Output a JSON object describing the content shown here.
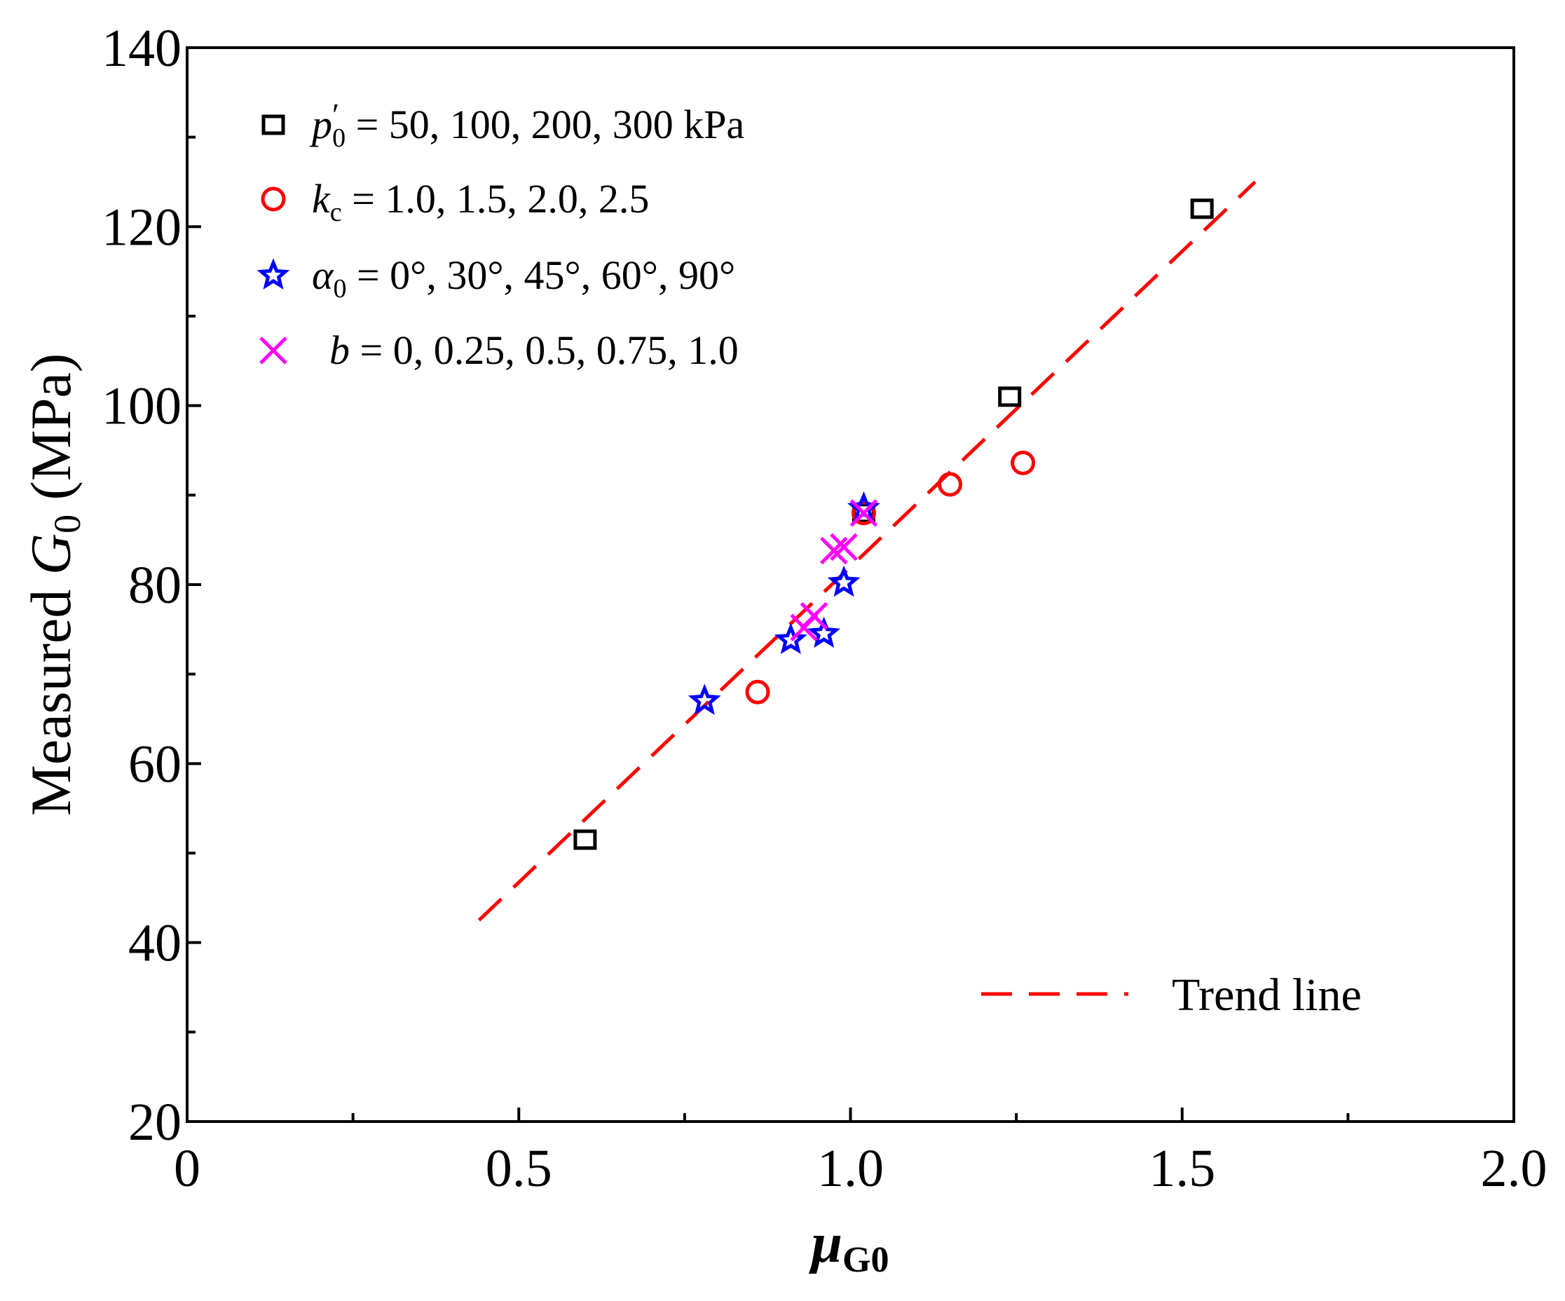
{
  "chart_data": {
    "type": "scatter",
    "title": "",
    "xlabel": "μG0",
    "xlabel_main": "μ",
    "xlabel_sub": "G0",
    "ylabel": "Measured G0 (MPa)",
    "ylabel_parts": {
      "prefix": "Measured ",
      "symbol": "G",
      "sub": "0",
      "suffix": " (MPa)"
    },
    "xlim": [
      0,
      2.0
    ],
    "ylim": [
      20,
      140
    ],
    "x_ticks": [
      {
        "value": 0,
        "label": "0"
      },
      {
        "value": 0.5,
        "label": "0.5"
      },
      {
        "value": 1.0,
        "label": "1.0"
      },
      {
        "value": 1.5,
        "label": "1.5"
      },
      {
        "value": 2.0,
        "label": "2.0"
      }
    ],
    "x_minor_ticks": [
      0.25,
      0.75,
      1.25,
      1.75
    ],
    "y_ticks": [
      {
        "value": 20,
        "label": "20"
      },
      {
        "value": 40,
        "label": "40"
      },
      {
        "value": 60,
        "label": "60"
      },
      {
        "value": 80,
        "label": "80"
      },
      {
        "value": 100,
        "label": "100"
      },
      {
        "value": 120,
        "label": "120"
      },
      {
        "value": 140,
        "label": "140"
      }
    ],
    "y_minor_ticks": [
      30,
      50,
      70,
      90,
      110,
      130
    ],
    "grid": false,
    "legend_position": "top-left",
    "series": [
      {
        "name": "p0' = 50, 100, 200, 300 kPa",
        "legend_symbol": "p",
        "legend_sub": "0",
        "legend_rest": " = 50, 100, 200, 300 kPa",
        "marker": "square",
        "color": "#000000",
        "points": [
          [
            0.6,
            51.5
          ],
          [
            1.02,
            88.0
          ],
          [
            1.24,
            101.0
          ],
          [
            1.53,
            122.0
          ]
        ]
      },
      {
        "name": "kc = 1.0, 1.5, 2.0, 2.5",
        "legend_symbol": "k",
        "legend_sub": "c",
        "legend_rest": " = 1.0, 1.5, 2.0, 2.5",
        "marker": "circle",
        "color": "#ff0000",
        "points": [
          [
            0.86,
            68.0
          ],
          [
            1.15,
            91.2
          ],
          [
            1.26,
            93.6
          ],
          [
            1.02,
            88.0
          ]
        ]
      },
      {
        "name": "α0 = 0°, 30°, 45°, 60°, 90°",
        "legend_symbol": "α",
        "legend_sub": "0",
        "legend_rest": " = 0°, 30°, 45°, 60°, 90°",
        "marker": "star",
        "color": "#0000ff",
        "points": [
          [
            0.78,
            67.0
          ],
          [
            0.91,
            73.8
          ],
          [
            0.96,
            74.5
          ],
          [
            0.99,
            80.2
          ],
          [
            1.02,
            88.5
          ]
        ]
      },
      {
        "name": "b = 0, 0.25, 0.5, 0.75, 1.0",
        "legend_symbol": "b",
        "legend_sub": "",
        "legend_rest": " = 0, 0.25, 0.5, 0.75, 1.0",
        "marker": "x",
        "color": "#ff00ff",
        "points": [
          [
            0.93,
            75.2
          ],
          [
            0.945,
            76.5
          ],
          [
            0.975,
            83.8
          ],
          [
            0.99,
            84.2
          ],
          [
            1.02,
            88.0
          ]
        ]
      }
    ],
    "trend_line": {
      "name": "Trend line",
      "color": "#ff0000",
      "style": "dashed",
      "from": [
        0.44,
        42.5
      ],
      "to": [
        1.61,
        125.0
      ]
    }
  }
}
